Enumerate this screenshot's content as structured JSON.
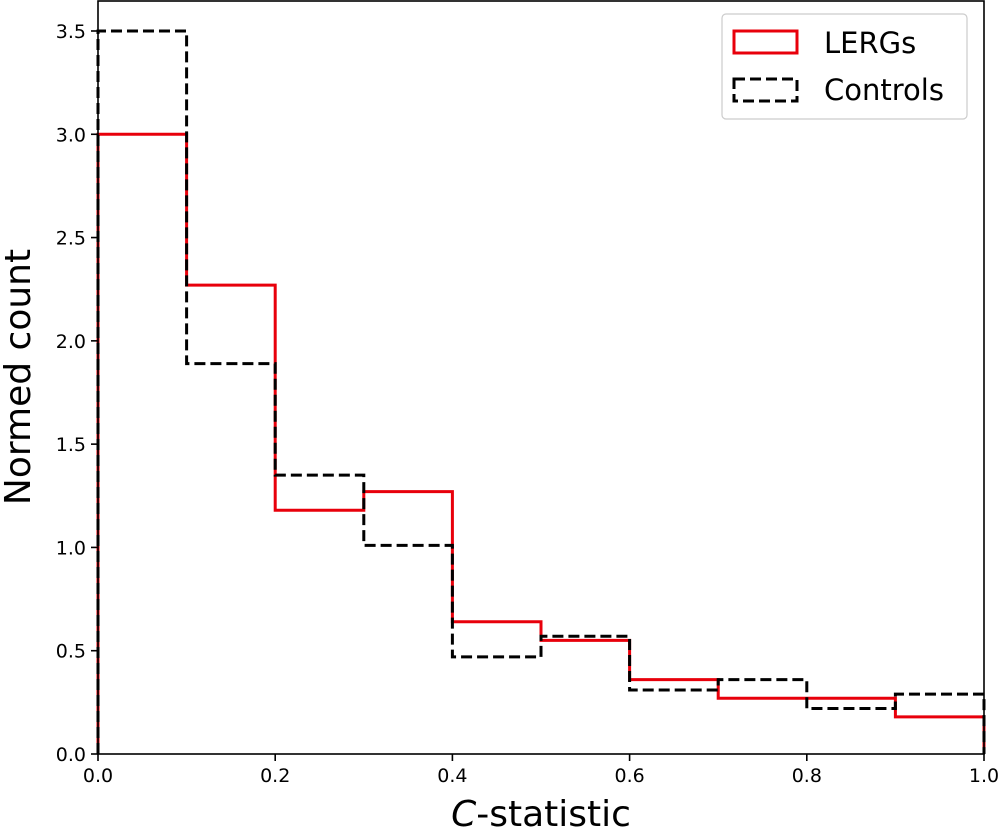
{
  "chart_data": {
    "type": "histogram",
    "xlabel_italic": "C",
    "xlabel_rest": "-statistic",
    "ylabel": "Normed count",
    "xlim": [
      0.0,
      1.0
    ],
    "ylim": [
      0.0,
      3.65
    ],
    "bin_edges": [
      0.0,
      0.1,
      0.2,
      0.3,
      0.4,
      0.5,
      0.6,
      0.7,
      0.8,
      0.9,
      1.0
    ],
    "xticks": [
      0.0,
      0.2,
      0.4,
      0.6,
      0.8,
      1.0
    ],
    "xtick_labels": [
      "0.0",
      "0.2",
      "0.4",
      "0.6",
      "0.8",
      "1.0"
    ],
    "yticks": [
      0.0,
      0.5,
      1.0,
      1.5,
      2.0,
      2.5,
      3.0,
      3.5
    ],
    "ytick_labels": [
      "0.0",
      "0.5",
      "1.0",
      "1.5",
      "2.0",
      "2.5",
      "3.0",
      "3.5"
    ],
    "series": [
      {
        "name": "LERGs",
        "color": "#e8000b",
        "style": "solid",
        "values": [
          3.0,
          2.27,
          1.18,
          1.27,
          0.64,
          0.55,
          0.36,
          0.27,
          0.27,
          0.18
        ]
      },
      {
        "name": "Controls",
        "color": "#000000",
        "style": "dashed",
        "values": [
          3.5,
          1.89,
          1.35,
          1.01,
          0.47,
          0.57,
          0.31,
          0.36,
          0.22,
          0.29
        ]
      }
    ],
    "legend_position": "top-right"
  }
}
